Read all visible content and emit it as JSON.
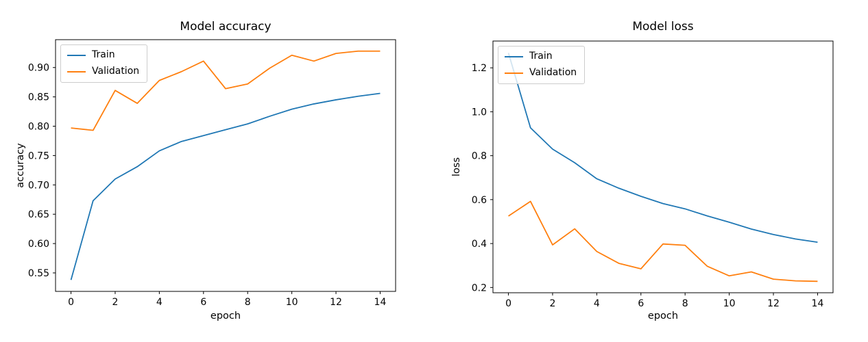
{
  "figure": {
    "background": "#ffffff"
  },
  "colors": {
    "train_line": "#1f77b4",
    "validation_line": "#ff7f0e",
    "axis": "#000000",
    "legend_border": "#cccccc"
  },
  "chart_data": [
    {
      "type": "line",
      "title": "Model accuracy",
      "xlabel": "epoch",
      "ylabel": "accuracy",
      "grid": false,
      "legend_position": "upper left",
      "x": [
        0,
        1,
        2,
        3,
        4,
        5,
        6,
        7,
        8,
        9,
        10,
        11,
        12,
        13,
        14
      ],
      "xlim": [
        -0.7,
        14.7
      ],
      "ylim": [
        0.5185,
        0.9475
      ],
      "xtick_values": [
        0,
        2,
        4,
        6,
        8,
        10,
        12,
        14
      ],
      "xtick_labels": [
        "0",
        "2",
        "4",
        "6",
        "8",
        "10",
        "12",
        "14"
      ],
      "ytick_values": [
        0.55,
        0.6,
        0.65,
        0.7,
        0.75,
        0.8,
        0.85,
        0.9
      ],
      "ytick_labels": [
        "0.55",
        "0.60",
        "0.65",
        "0.70",
        "0.75",
        "0.80",
        "0.85",
        "0.90"
      ],
      "series": [
        {
          "name": "Train",
          "color": "#1f77b4",
          "values": [
            0.538,
            0.673,
            0.71,
            0.731,
            0.758,
            0.774,
            0.784,
            0.794,
            0.804,
            0.817,
            0.829,
            0.838,
            0.845,
            0.851,
            0.856
          ]
        },
        {
          "name": "Validation",
          "color": "#ff7f0e",
          "values": [
            0.797,
            0.793,
            0.861,
            0.839,
            0.878,
            0.893,
            0.911,
            0.864,
            0.872,
            0.899,
            0.921,
            0.911,
            0.924,
            0.928,
            0.928
          ]
        }
      ]
    },
    {
      "type": "line",
      "title": "Model loss",
      "xlabel": "epoch",
      "ylabel": "loss",
      "grid": false,
      "legend_position": "upper left",
      "x": [
        0,
        1,
        2,
        3,
        4,
        5,
        6,
        7,
        8,
        9,
        10,
        11,
        12,
        13,
        14
      ],
      "xlim": [
        -0.7,
        14.7
      ],
      "ylim": [
        0.176,
        1.322
      ],
      "xtick_values": [
        0,
        2,
        4,
        6,
        8,
        10,
        12,
        14
      ],
      "xtick_labels": [
        "0",
        "2",
        "4",
        "6",
        "8",
        "10",
        "12",
        "14"
      ],
      "ytick_values": [
        0.2,
        0.4,
        0.6,
        0.8,
        1.0,
        1.2
      ],
      "ytick_labels": [
        "0.2",
        "0.4",
        "0.6",
        "0.8",
        "1.0",
        "1.2"
      ],
      "series": [
        {
          "name": "Train",
          "color": "#1f77b4",
          "values": [
            1.268,
            0.927,
            0.83,
            0.768,
            0.695,
            0.652,
            0.615,
            0.582,
            0.558,
            0.526,
            0.497,
            0.466,
            0.441,
            0.421,
            0.406
          ]
        },
        {
          "name": "Validation",
          "color": "#ff7f0e",
          "values": [
            0.525,
            0.592,
            0.394,
            0.467,
            0.364,
            0.31,
            0.285,
            0.398,
            0.392,
            0.297,
            0.253,
            0.271,
            0.238,
            0.23,
            0.228
          ]
        }
      ]
    }
  ]
}
